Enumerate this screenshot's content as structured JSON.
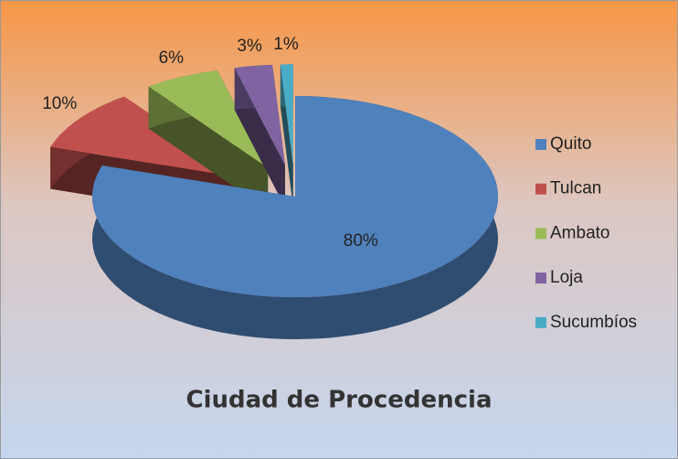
{
  "chart_data": {
    "type": "pie",
    "title": "Ciudad de Procedencia",
    "categories": [
      "Quito",
      "Tulcan",
      "Ambato",
      "Loja",
      "Sucumbíos"
    ],
    "values": [
      80,
      10,
      6,
      3,
      1
    ],
    "value_labels": [
      "80%",
      "10%",
      "6%",
      "3%",
      "1%"
    ],
    "colors": [
      "#4f81bd",
      "#c0504d",
      "#9bbb59",
      "#8064a2",
      "#4bacc6"
    ],
    "legend": "right"
  }
}
